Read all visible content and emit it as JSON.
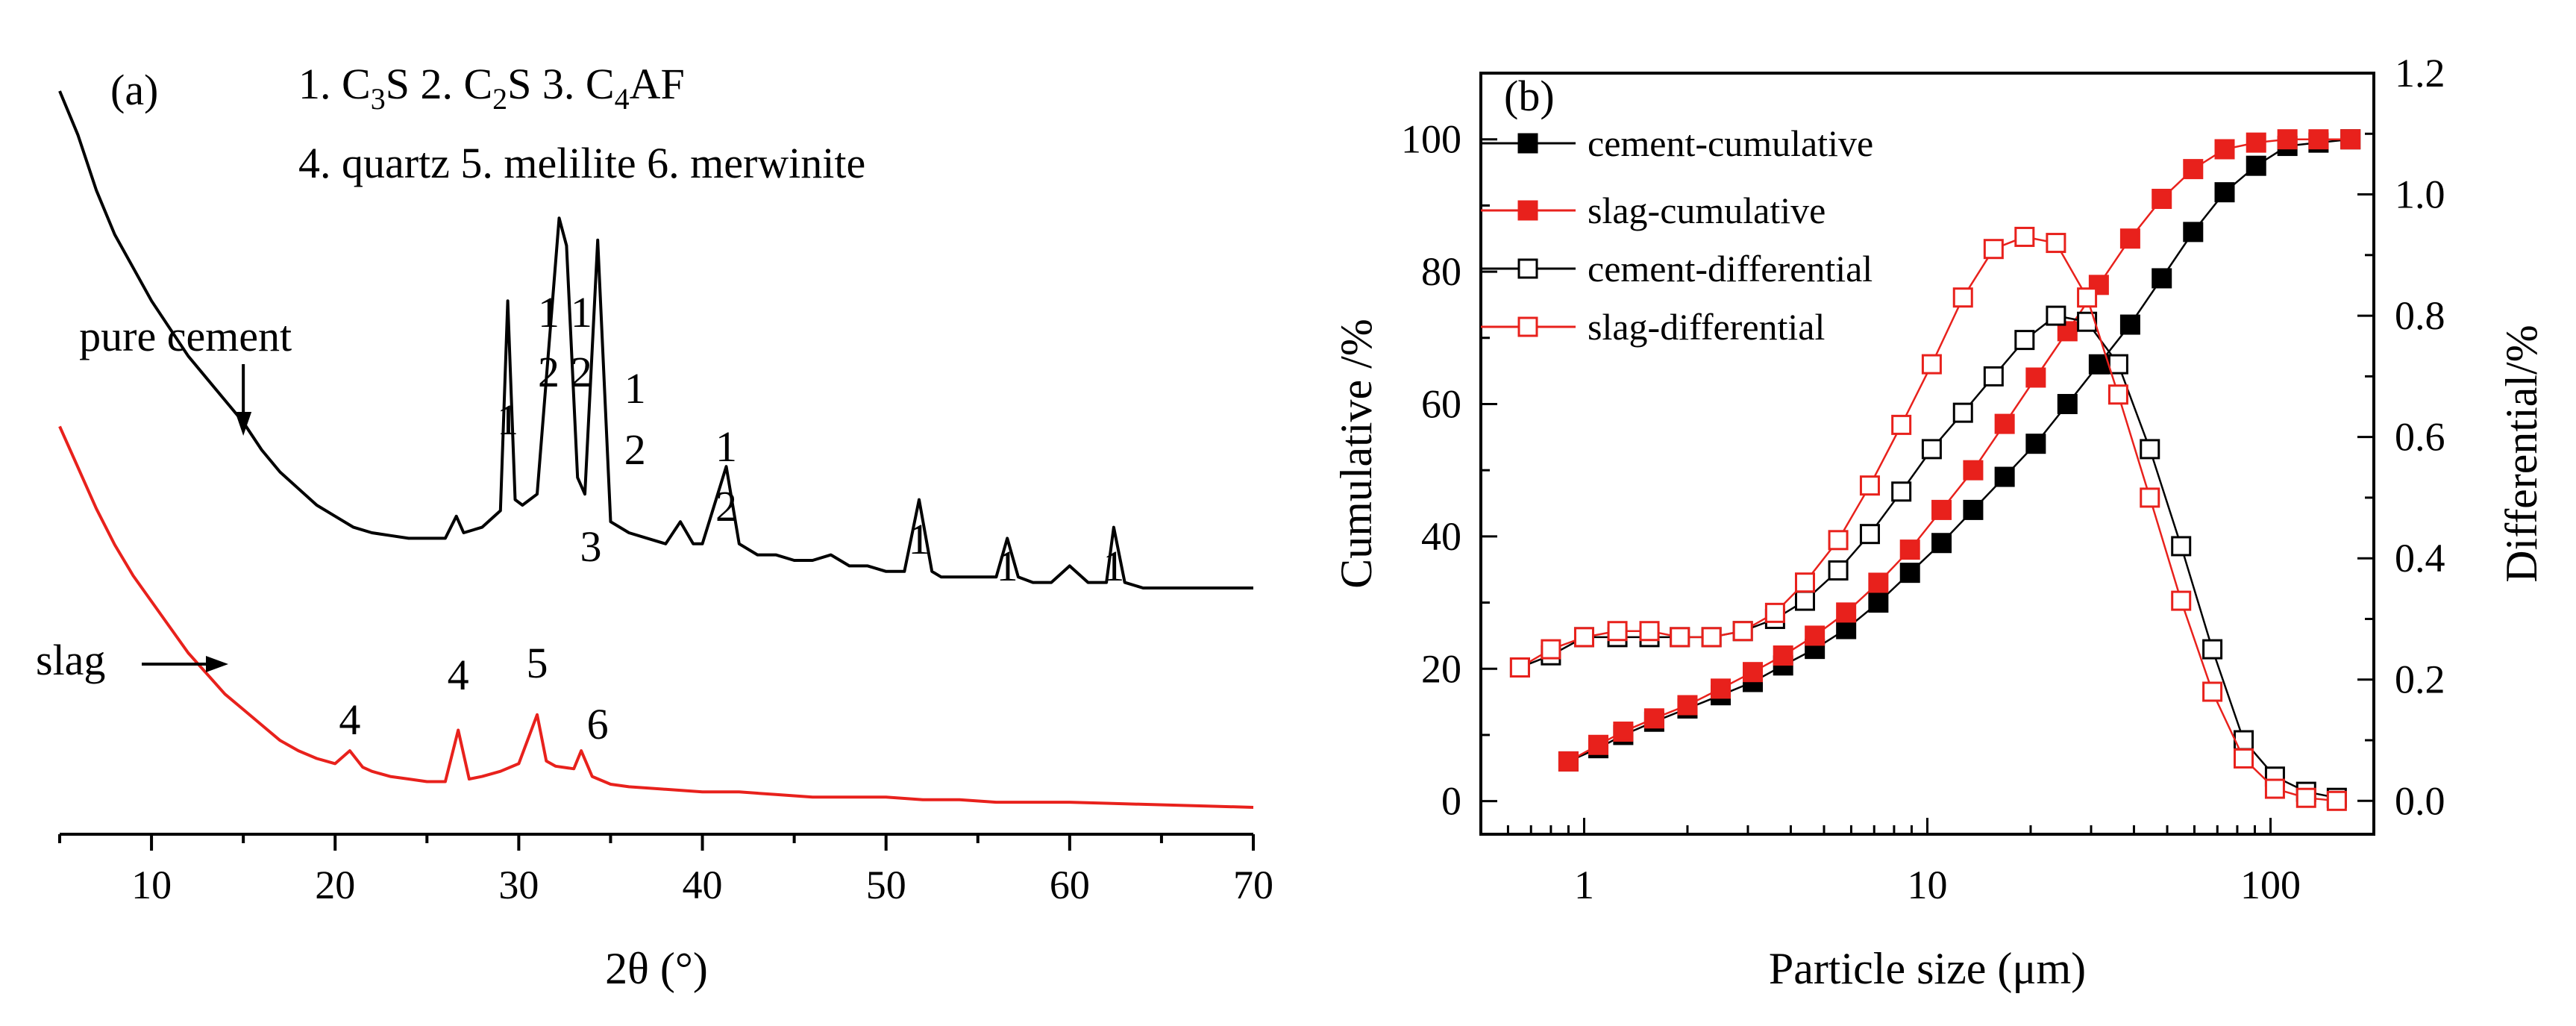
{
  "chart_data": [
    {
      "panel": "(a)",
      "type": "line",
      "xlabel": "2θ (°)",
      "ylabel": "",
      "xlim": [
        5,
        70
      ],
      "xticks": [
        10,
        20,
        30,
        40,
        50,
        60,
        70
      ],
      "legend_lines": [
        "1. C3S  2. C2S  3. C4AF",
        "4. quartz 5. melilite 6. merwinite"
      ],
      "series": [
        {
          "name": "pure cement",
          "color": "#000000",
          "x": [
            5,
            6,
            7,
            8,
            9,
            10,
            11,
            12,
            13,
            14,
            15,
            16,
            17,
            18,
            19,
            20,
            21,
            22,
            23,
            24,
            25,
            26,
            26.6,
            27,
            28,
            29,
            29.4,
            29.8,
            30.2,
            31,
            32.2,
            32.6,
            33.2,
            33.6,
            34.3,
            35,
            36,
            37,
            38,
            38.8,
            39.5,
            40,
            41.3,
            42,
            43,
            44,
            45,
            46,
            47,
            48,
            49,
            50,
            51,
            51.8,
            52.5,
            53,
            54,
            55,
            56,
            56.6,
            57.2,
            58,
            59,
            60,
            61,
            62,
            62.4,
            63,
            64,
            65,
            66,
            67,
            68,
            69,
            70
          ],
          "y": [
            1.0,
            0.92,
            0.82,
            0.74,
            0.68,
            0.62,
            0.57,
            0.52,
            0.48,
            0.44,
            0.4,
            0.35,
            0.31,
            0.28,
            0.25,
            0.23,
            0.21,
            0.2,
            0.195,
            0.19,
            0.19,
            0.19,
            0.23,
            0.2,
            0.21,
            0.24,
            0.62,
            0.26,
            0.25,
            0.27,
            0.77,
            0.72,
            0.3,
            0.27,
            0.73,
            0.22,
            0.2,
            0.19,
            0.18,
            0.22,
            0.18,
            0.18,
            0.32,
            0.18,
            0.16,
            0.16,
            0.15,
            0.15,
            0.16,
            0.14,
            0.14,
            0.13,
            0.13,
            0.26,
            0.13,
            0.12,
            0.12,
            0.12,
            0.12,
            0.19,
            0.12,
            0.11,
            0.11,
            0.14,
            0.11,
            0.11,
            0.21,
            0.11,
            0.1,
            0.1,
            0.1,
            0.1,
            0.1,
            0.1,
            0.1
          ]
        },
        {
          "name": "slag",
          "color": "#e8211c",
          "x": [
            5,
            6,
            7,
            8,
            9,
            10,
            11,
            12,
            13,
            14,
            15,
            16,
            17,
            18,
            19,
            20,
            20.8,
            21.5,
            22,
            23,
            24,
            25,
            26,
            26.7,
            27.3,
            28,
            29,
            30,
            31,
            31.5,
            32,
            33,
            33.4,
            34,
            35,
            36,
            38,
            40,
            42,
            44,
            46,
            48,
            50,
            52,
            54,
            56,
            58,
            60,
            62,
            64,
            66,
            68,
            70
          ],
          "y": [
            0.74,
            0.66,
            0.58,
            0.51,
            0.45,
            0.4,
            0.35,
            0.3,
            0.26,
            0.22,
            0.19,
            0.16,
            0.13,
            0.11,
            0.095,
            0.085,
            0.11,
            0.078,
            0.07,
            0.06,
            0.055,
            0.05,
            0.05,
            0.15,
            0.055,
            0.06,
            0.07,
            0.085,
            0.18,
            0.09,
            0.08,
            0.075,
            0.11,
            0.06,
            0.045,
            0.04,
            0.035,
            0.03,
            0.03,
            0.025,
            0.02,
            0.02,
            0.02,
            0.015,
            0.015,
            0.01,
            0.01,
            0.01,
            0.008,
            0.006,
            0.004,
            0.002,
            0.0
          ]
        }
      ],
      "annotations": [
        {
          "text": "pure cement",
          "x": 15
        },
        {
          "text": "slag",
          "x": 9
        },
        {
          "text": "1",
          "x": 29.4
        },
        {
          "text": "1",
          "x": 32.2
        },
        {
          "text": "2",
          "x": 32.2
        },
        {
          "text": "1",
          "x": 32.6
        },
        {
          "text": "2",
          "x": 32.6
        },
        {
          "text": "3",
          "x": 33.6
        },
        {
          "text": "1",
          "x": 34.3
        },
        {
          "text": "2",
          "x": 34.3
        },
        {
          "text": "1",
          "x": 41.3
        },
        {
          "text": "2",
          "x": 41.3
        },
        {
          "text": "1",
          "x": 51.8
        },
        {
          "text": "1",
          "x": 56.6
        },
        {
          "text": "1",
          "x": 62.4
        },
        {
          "text": "4",
          "x": 20.8
        },
        {
          "text": "4",
          "x": 26.7
        },
        {
          "text": "5",
          "x": 31
        },
        {
          "text": "6",
          "x": 33.4
        }
      ]
    },
    {
      "panel": "(b)",
      "type": "line",
      "xscale": "log",
      "xlabel": "Particle size (μm)",
      "ylabel": "Cumulative /%",
      "y2label": "Differential/%",
      "xlim": [
        0.5,
        200
      ],
      "ylim": [
        -5,
        110
      ],
      "y2lim": [
        -0.055,
        1.2
      ],
      "xticks": [
        "1",
        "10",
        "100"
      ],
      "yticks": [
        "0",
        "20",
        "40",
        "60",
        "80",
        "100"
      ],
      "y2ticks": [
        "0.0",
        "0.2",
        "0.4",
        "0.6",
        "0.8",
        "1.0",
        "1.2"
      ],
      "legend_placement": "top-left",
      "series": [
        {
          "name": "cement-cumulative",
          "axis": "left",
          "color": "#000000",
          "marker": "filled-square",
          "x": [
            0.9,
            1.1,
            1.3,
            1.6,
            2.0,
            2.5,
            3.1,
            3.8,
            4.7,
            5.8,
            7.2,
            8.9,
            11,
            13.6,
            16.8,
            20.7,
            25.6,
            31.6,
            39,
            48.2,
            59.5,
            73.5,
            90.8,
            112,
            138,
            171
          ],
          "values": [
            6,
            8,
            10,
            12,
            14,
            16,
            18,
            20.5,
            23,
            26,
            30,
            34.5,
            39,
            44,
            49,
            54,
            60,
            66,
            72,
            79,
            86,
            92,
            96,
            99,
            99.5,
            100
          ]
        },
        {
          "name": "slag-cumulative",
          "axis": "left",
          "color": "#e8211c",
          "marker": "filled-square",
          "x": [
            0.9,
            1.1,
            1.3,
            1.6,
            2.0,
            2.5,
            3.1,
            3.8,
            4.7,
            5.8,
            7.2,
            8.9,
            11,
            13.6,
            16.8,
            20.7,
            25.6,
            31.6,
            39,
            48.2,
            59.5,
            73.5,
            90.8,
            112,
            138,
            171
          ],
          "values": [
            6,
            8.5,
            10.5,
            12.5,
            14.5,
            17,
            19.5,
            22,
            25,
            28.5,
            33,
            38,
            44,
            50,
            57,
            64,
            71,
            78,
            85,
            91,
            95.5,
            98.5,
            99.5,
            100,
            100,
            100
          ]
        },
        {
          "name": "cement-differential",
          "axis": "right",
          "color": "#000000",
          "marker": "open-square",
          "x": [
            0.65,
            0.8,
            1.0,
            1.25,
            1.55,
            1.9,
            2.35,
            2.9,
            3.6,
            4.4,
            5.5,
            6.8,
            8.4,
            10.3,
            12.7,
            15.6,
            19.2,
            23.7,
            29.2,
            36,
            44.5,
            54.9,
            67.7,
            83.5,
            103,
            127,
            156
          ],
          "values": [
            0.22,
            0.24,
            0.27,
            0.27,
            0.27,
            0.27,
            0.27,
            0.28,
            0.3,
            0.33,
            0.38,
            0.44,
            0.51,
            0.58,
            0.64,
            0.7,
            0.76,
            0.8,
            0.79,
            0.72,
            0.58,
            0.42,
            0.25,
            0.1,
            0.04,
            0.015,
            0.005
          ]
        },
        {
          "name": "slag-differential",
          "axis": "right",
          "color": "#e8211c",
          "marker": "open-square",
          "x": [
            0.65,
            0.8,
            1.0,
            1.25,
            1.55,
            1.9,
            2.35,
            2.9,
            3.6,
            4.4,
            5.5,
            6.8,
            8.4,
            10.3,
            12.7,
            15.6,
            19.2,
            23.7,
            29.2,
            36,
            44.5,
            54.9,
            67.7,
            83.5,
            103,
            127,
            156
          ],
          "values": [
            0.22,
            0.25,
            0.27,
            0.28,
            0.28,
            0.27,
            0.27,
            0.28,
            0.31,
            0.36,
            0.43,
            0.52,
            0.62,
            0.72,
            0.83,
            0.91,
            0.93,
            0.92,
            0.83,
            0.67,
            0.5,
            0.33,
            0.18,
            0.07,
            0.02,
            0.005,
            0.0
          ]
        }
      ]
    }
  ]
}
